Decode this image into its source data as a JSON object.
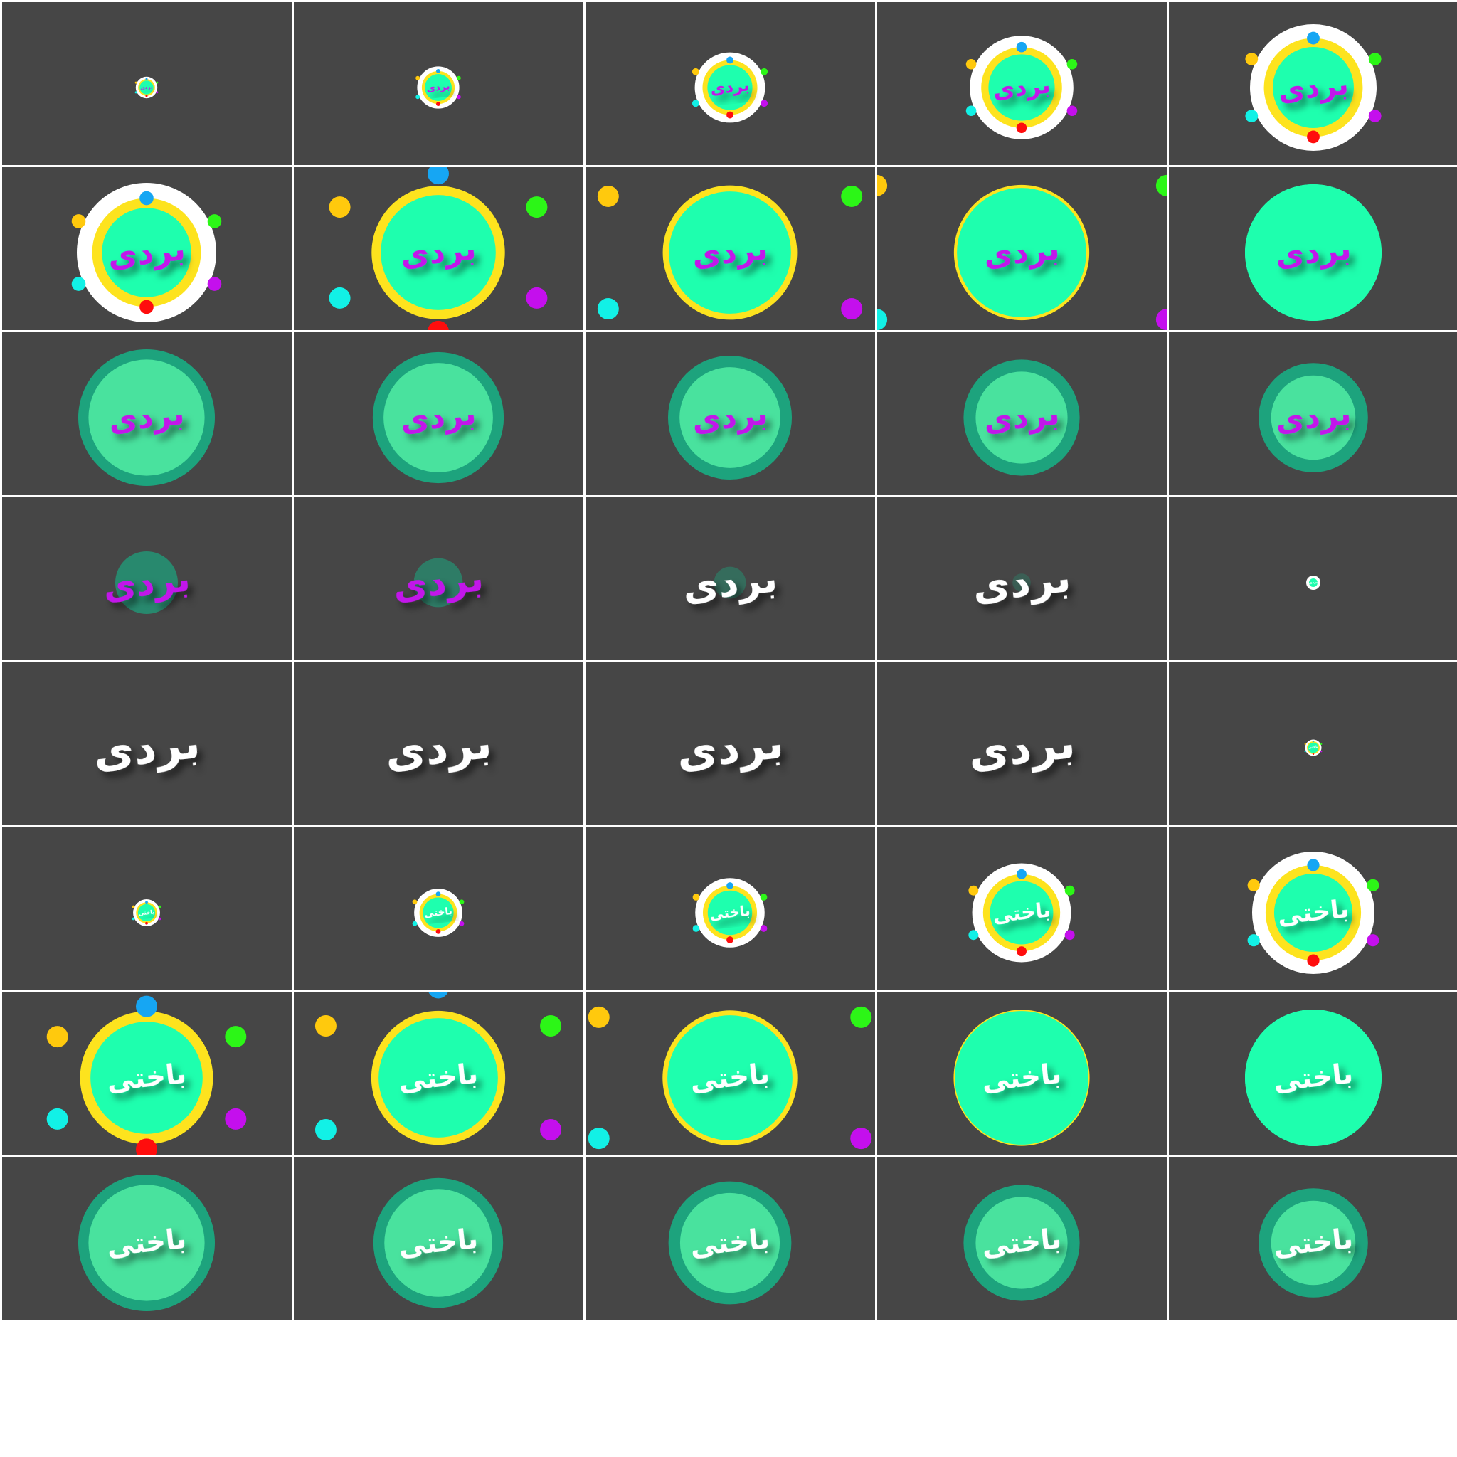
{
  "words": {
    "win": "بردی",
    "lose": "باختی"
  },
  "colors": {
    "background": "#464646",
    "grid_line": "#ffffff",
    "ring_white": "#ffffff",
    "ring_yellow": "#fde31e",
    "disc_green": "#1effae",
    "disc_green_dark": "#1da37d",
    "disc_green_inner": "#4fe9a2",
    "text_purple": "#c214ea",
    "text_white": "#ffffff",
    "dot_blue": "#16a6f3",
    "dot_red": "#ff0d0d",
    "dot_yellow": "#ffc90d",
    "dot_green": "#2cf617",
    "dot_cyan": "#12f1e6",
    "dot_purple": "#c40fed"
  },
  "frames": [
    {
      "word": "win",
      "stage": "ring",
      "t": 0.08,
      "color": "text_purple"
    },
    {
      "word": "win",
      "stage": "ring",
      "t": 0.24,
      "color": "text_purple"
    },
    {
      "word": "win",
      "stage": "ring",
      "t": 0.46,
      "color": "text_purple"
    },
    {
      "word": "win",
      "stage": "ring",
      "t": 0.72,
      "color": "text_purple"
    },
    {
      "word": "win",
      "stage": "ring",
      "t": 0.9,
      "color": "text_purple"
    },
    {
      "word": "win",
      "stage": "ring",
      "t": 1.0,
      "color": "text_purple"
    },
    {
      "word": "win",
      "stage": "burst",
      "t": 0.2,
      "color": "text_purple"
    },
    {
      "word": "win",
      "stage": "burst",
      "t": 0.45,
      "color": "text_purple"
    },
    {
      "word": "win",
      "stage": "burst",
      "t": 0.7,
      "color": "text_purple"
    },
    {
      "word": "win",
      "stage": "burst",
      "t": 1.0,
      "color": "text_purple"
    },
    {
      "word": "win",
      "stage": "shrink",
      "t": 0.0,
      "color": "text_purple"
    },
    {
      "word": "win",
      "stage": "shrink",
      "t": 0.12,
      "color": "text_purple"
    },
    {
      "word": "win",
      "stage": "shrink",
      "t": 0.28,
      "color": "text_purple"
    },
    {
      "word": "win",
      "stage": "shrink",
      "t": 0.45,
      "color": "text_purple"
    },
    {
      "word": "win",
      "stage": "shrink",
      "t": 0.6,
      "color": "text_purple"
    },
    {
      "word": "win",
      "stage": "fade",
      "t": 0.25,
      "color": "text_purple"
    },
    {
      "word": "win",
      "stage": "fade",
      "t": 0.45,
      "color": "text_purple"
    },
    {
      "word": "win",
      "stage": "fade",
      "t": 0.7,
      "color": "text_white"
    },
    {
      "word": "win",
      "stage": "fade",
      "t": 0.9,
      "color": "text_white"
    },
    {
      "word": "win",
      "stage": "text",
      "t": 0.0,
      "color": "text_white"
    },
    {
      "word": "win",
      "stage": "text",
      "t": 1.0,
      "color": "text_white"
    },
    {
      "word": "win",
      "stage": "text",
      "t": 1.0,
      "color": "text_white"
    },
    {
      "word": "win",
      "stage": "text",
      "t": 1.0,
      "color": "text_white"
    },
    {
      "word": "win",
      "stage": "text",
      "t": 1.0,
      "color": "text_white"
    },
    {
      "word": "lose",
      "stage": "ring",
      "t": 0.05,
      "color": "text_white"
    },
    {
      "word": "lose",
      "stage": "ring",
      "t": 0.14,
      "color": "text_white"
    },
    {
      "word": "lose",
      "stage": "ring",
      "t": 0.32,
      "color": "text_white"
    },
    {
      "word": "lose",
      "stage": "ring",
      "t": 0.5,
      "color": "text_white"
    },
    {
      "word": "lose",
      "stage": "ring",
      "t": 0.75,
      "color": "text_white"
    },
    {
      "word": "lose",
      "stage": "ring",
      "t": 0.95,
      "color": "text_white"
    },
    {
      "word": "lose",
      "stage": "burst",
      "t": 0.1,
      "color": "text_white"
    },
    {
      "word": "lose",
      "stage": "burst",
      "t": 0.35,
      "color": "text_white"
    },
    {
      "word": "lose",
      "stage": "burst",
      "t": 0.55,
      "color": "text_white"
    },
    {
      "word": "lose",
      "stage": "burst",
      "t": 0.85,
      "color": "text_white"
    },
    {
      "word": "lose",
      "stage": "burst",
      "t": 1.0,
      "color": "text_white"
    },
    {
      "word": "lose",
      "stage": "shrink",
      "t": 0.0,
      "color": "text_white"
    },
    {
      "word": "lose",
      "stage": "shrink",
      "t": 0.15,
      "color": "text_white"
    },
    {
      "word": "lose",
      "stage": "shrink",
      "t": 0.3,
      "color": "text_white"
    },
    {
      "word": "lose",
      "stage": "shrink",
      "t": 0.45,
      "color": "text_white"
    },
    {
      "word": "lose",
      "stage": "shrink",
      "t": 0.6,
      "color": "text_white"
    }
  ]
}
